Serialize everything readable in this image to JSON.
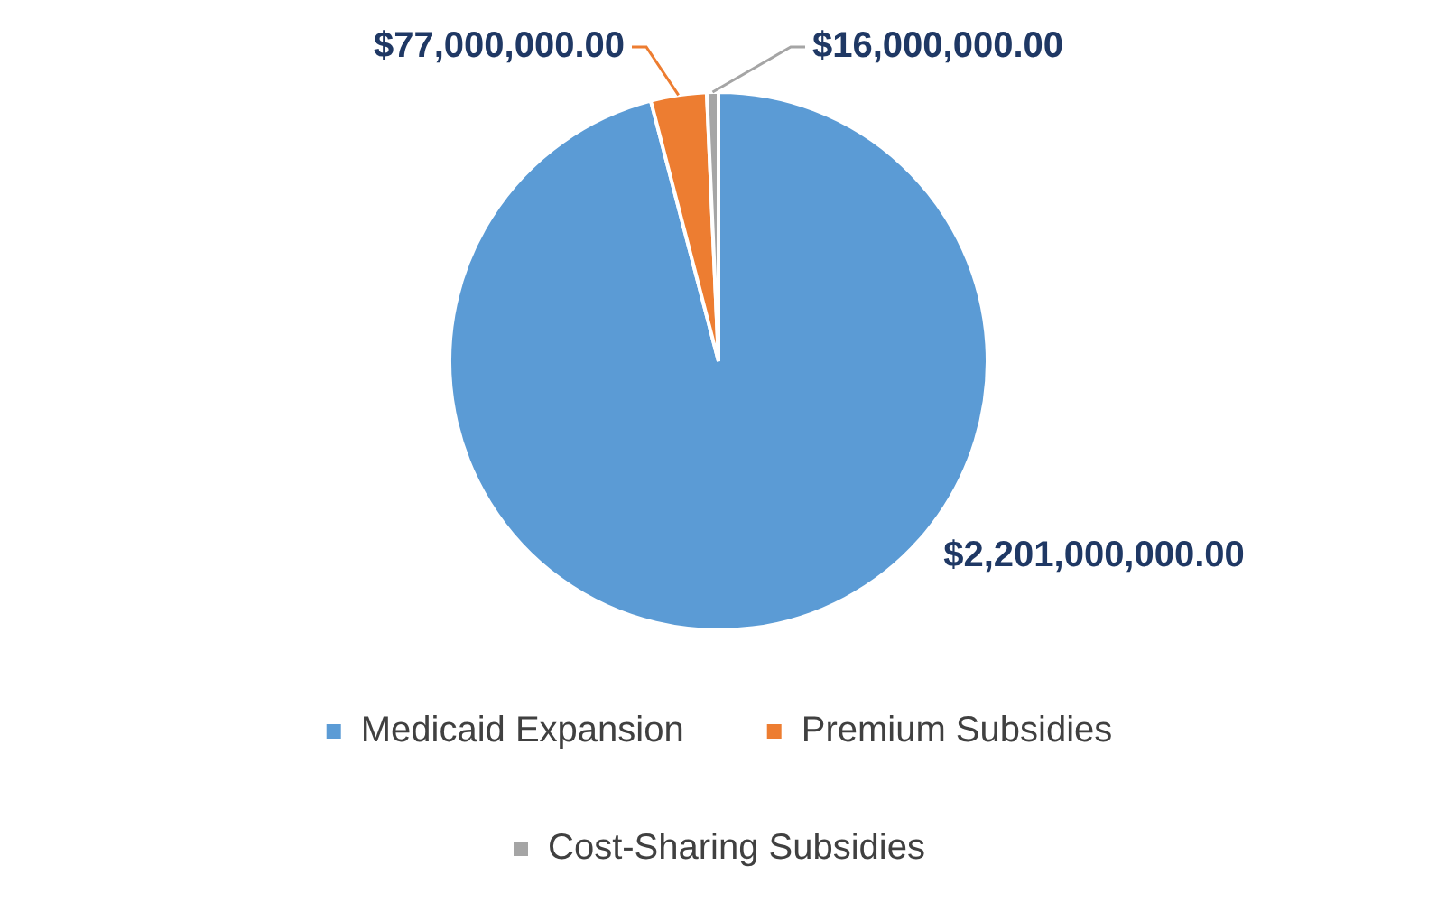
{
  "chart_data": {
    "type": "pie",
    "categories": [
      "Medicaid Expansion",
      "Premium Subsidies",
      "Cost-Sharing Subsidies"
    ],
    "values": [
      2201000000,
      77000000,
      16000000
    ],
    "colors": [
      "#5b9bd5",
      "#ed7d31",
      "#a5a5a5"
    ],
    "value_labels": [
      "$2,201,000,000.00",
      "$77,000,000.00",
      "$16,000,000.00"
    ],
    "legend": "bottom"
  }
}
